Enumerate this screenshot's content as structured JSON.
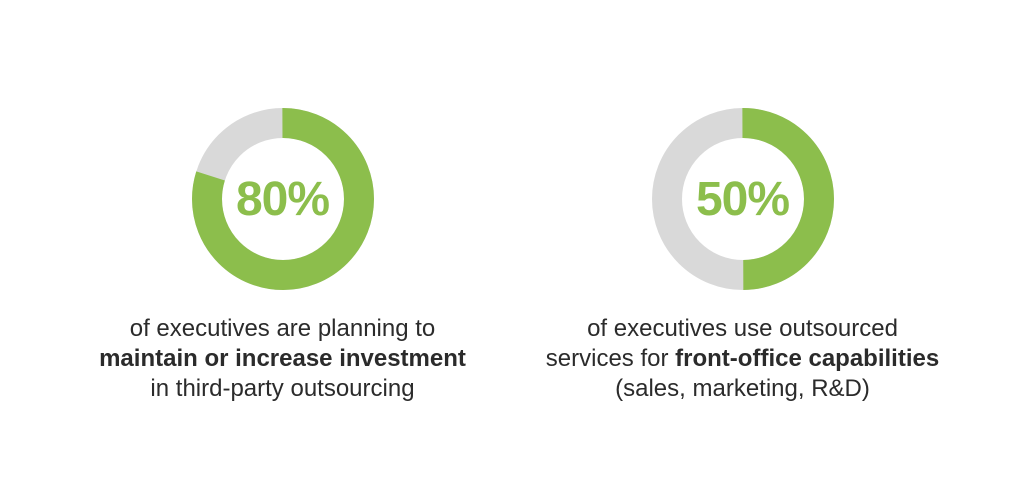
{
  "colors": {
    "accent": "#8cbe4c",
    "track": "#d9d9d9",
    "text": "#2b2b2b",
    "background": "#ffffff"
  },
  "chart_data": [
    {
      "type": "pie",
      "subtype": "donut",
      "title": "",
      "center_label": "80%",
      "start_angle_deg": 0,
      "direction": "clockwise",
      "legend": "none",
      "slices": [
        {
          "label": "80%",
          "value": 80,
          "color": "#8cbe4c"
        },
        {
          "label": "remainder",
          "value": 20,
          "color": "#d9d9d9"
        }
      ],
      "caption_lines": [
        [
          {
            "text": "of executives are planning to",
            "bold": false
          }
        ],
        [
          {
            "text": "maintain or increase investment",
            "bold": true
          }
        ],
        [
          {
            "text": "in third-party outsourcing",
            "bold": false
          }
        ]
      ]
    },
    {
      "type": "pie",
      "subtype": "donut",
      "title": "",
      "center_label": "50%",
      "start_angle_deg": 0,
      "direction": "clockwise",
      "legend": "none",
      "slices": [
        {
          "label": "50%",
          "value": 50,
          "color": "#8cbe4c"
        },
        {
          "label": "remainder",
          "value": 50,
          "color": "#d9d9d9"
        }
      ],
      "caption_lines": [
        [
          {
            "text": "of executives use outsourced",
            "bold": false
          }
        ],
        [
          {
            "text": "services for ",
            "bold": false
          },
          {
            "text": "front-office capabilities",
            "bold": true
          }
        ],
        [
          {
            "text": "(sales, marketing, R&D)",
            "bold": false
          }
        ]
      ]
    }
  ]
}
